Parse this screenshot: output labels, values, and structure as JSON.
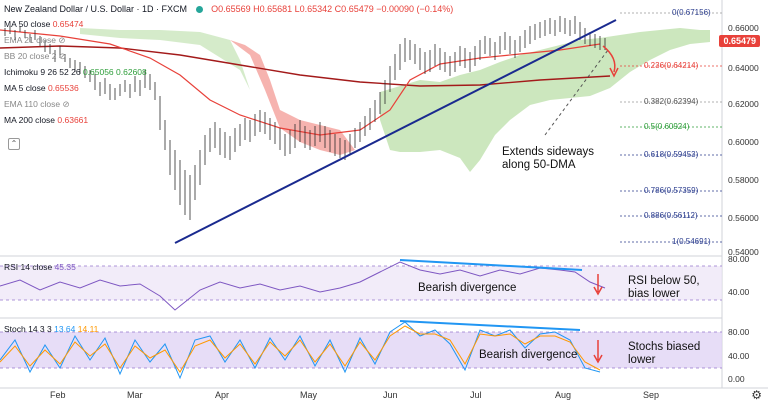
{
  "header": {
    "symbol": "New Zealand Dollar / U.S. Dollar · 1D · FXCM",
    "ohlc": "O0.65569 H0.65681 L0.65342 C0.65479 −0.00090 (−0.14%)"
  },
  "legend": [
    {
      "label": "MA 50 close",
      "value": "0.65474",
      "color": "#e8413a"
    },
    {
      "label": "EMA 21 close",
      "value": "",
      "color": "#999999"
    },
    {
      "label": "BB 20 close 2",
      "value": "",
      "color": "#999999"
    },
    {
      "label": "Ichimoku 9 26 52 26",
      "value": "0.65056  0.62608",
      "color": "#2e9e3a"
    },
    {
      "label": "MA 5 close",
      "value": "0.65536",
      "color": "#e8413a"
    },
    {
      "label": "EMA 110 close",
      "value": "",
      "color": "#999999"
    },
    {
      "label": "MA 200 close",
      "value": "0.63661",
      "color": "#e8413a"
    }
  ],
  "price_axis": {
    "current_price": "0.65479",
    "ticks": [
      "0.66000",
      "0.64000",
      "0.62000",
      "0.60000",
      "0.58000",
      "0.56000",
      "0.54000"
    ]
  },
  "fib_levels": [
    "0(0.67156)",
    "0.236(0.64214)",
    "0.382(0.62394)",
    "0.5(0.60924)",
    "0.618(0.59453)",
    "0.786(0.57359)",
    "0.886(0.56112)",
    "1(0.54691)"
  ],
  "x_axis": [
    "Feb",
    "Mar",
    "Apr",
    "May",
    "Jun",
    "Jul",
    "Aug",
    "Sep"
  ],
  "annotations": {
    "main": "Extends sideways\nalong 50-DMA",
    "rsi_div": "Bearish divergence",
    "rsi_note": "RSI below 50,\nbias lower",
    "stoch_div": "Bearish divergence",
    "stoch_note": "Stochs biased\nlower"
  },
  "rsi": {
    "label": "RSI 14 close",
    "value": "45.35",
    "ticks": [
      "80.00",
      "40.00"
    ]
  },
  "stoch": {
    "label": "Stoch 14 3 3",
    "k": "13.64",
    "d": "14.11",
    "ticks": [
      "80.00",
      "40.00",
      "0.00"
    ]
  },
  "colors": {
    "accent_red": "#e8413a",
    "trend_blue": "#1a2a8f",
    "cloud_green": "#b7dca6",
    "cloud_red": "#f4a6a1",
    "rsi_purple": "#7e57c2",
    "divergence_blue": "#2196f3"
  }
}
